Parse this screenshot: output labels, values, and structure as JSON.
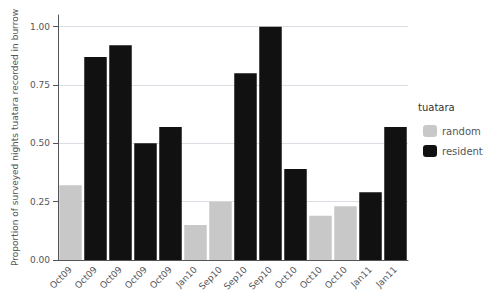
{
  "chart_data": {
    "type": "bar",
    "categories": [
      "Oct09",
      "Oct09",
      "Oct09",
      "Oct09",
      "Oct09",
      "Jan10",
      "Sep10",
      "Sep10",
      "Sep10",
      "Oct10",
      "Oct10",
      "Oct10",
      "Jan11",
      "Jan11"
    ],
    "series": [
      {
        "name": "random",
        "color": "#c8c8c8",
        "values": [
          0.32,
          null,
          null,
          null,
          null,
          0.15,
          0.25,
          null,
          null,
          null,
          0.19,
          0.23,
          null,
          null
        ]
      },
      {
        "name": "resident",
        "color": "#111111",
        "values": [
          null,
          0.87,
          0.92,
          0.5,
          0.57,
          null,
          null,
          0.8,
          1.0,
          0.39,
          null,
          null,
          0.29,
          0.57
        ]
      }
    ],
    "ylabel": "Proportion of surveyed nights tuatara recorded in burrow",
    "ylim": [
      0.0,
      1.05
    ],
    "yticks": [
      {
        "value": 0.0,
        "label": "0.00"
      },
      {
        "value": 0.25,
        "label": "0.25"
      },
      {
        "value": 0.5,
        "label": "0.50"
      },
      {
        "value": 0.75,
        "label": "0.75"
      },
      {
        "value": 1.0,
        "label": "1.00"
      }
    ],
    "grid": true,
    "legend": "right",
    "legend_title": "tuatara"
  }
}
